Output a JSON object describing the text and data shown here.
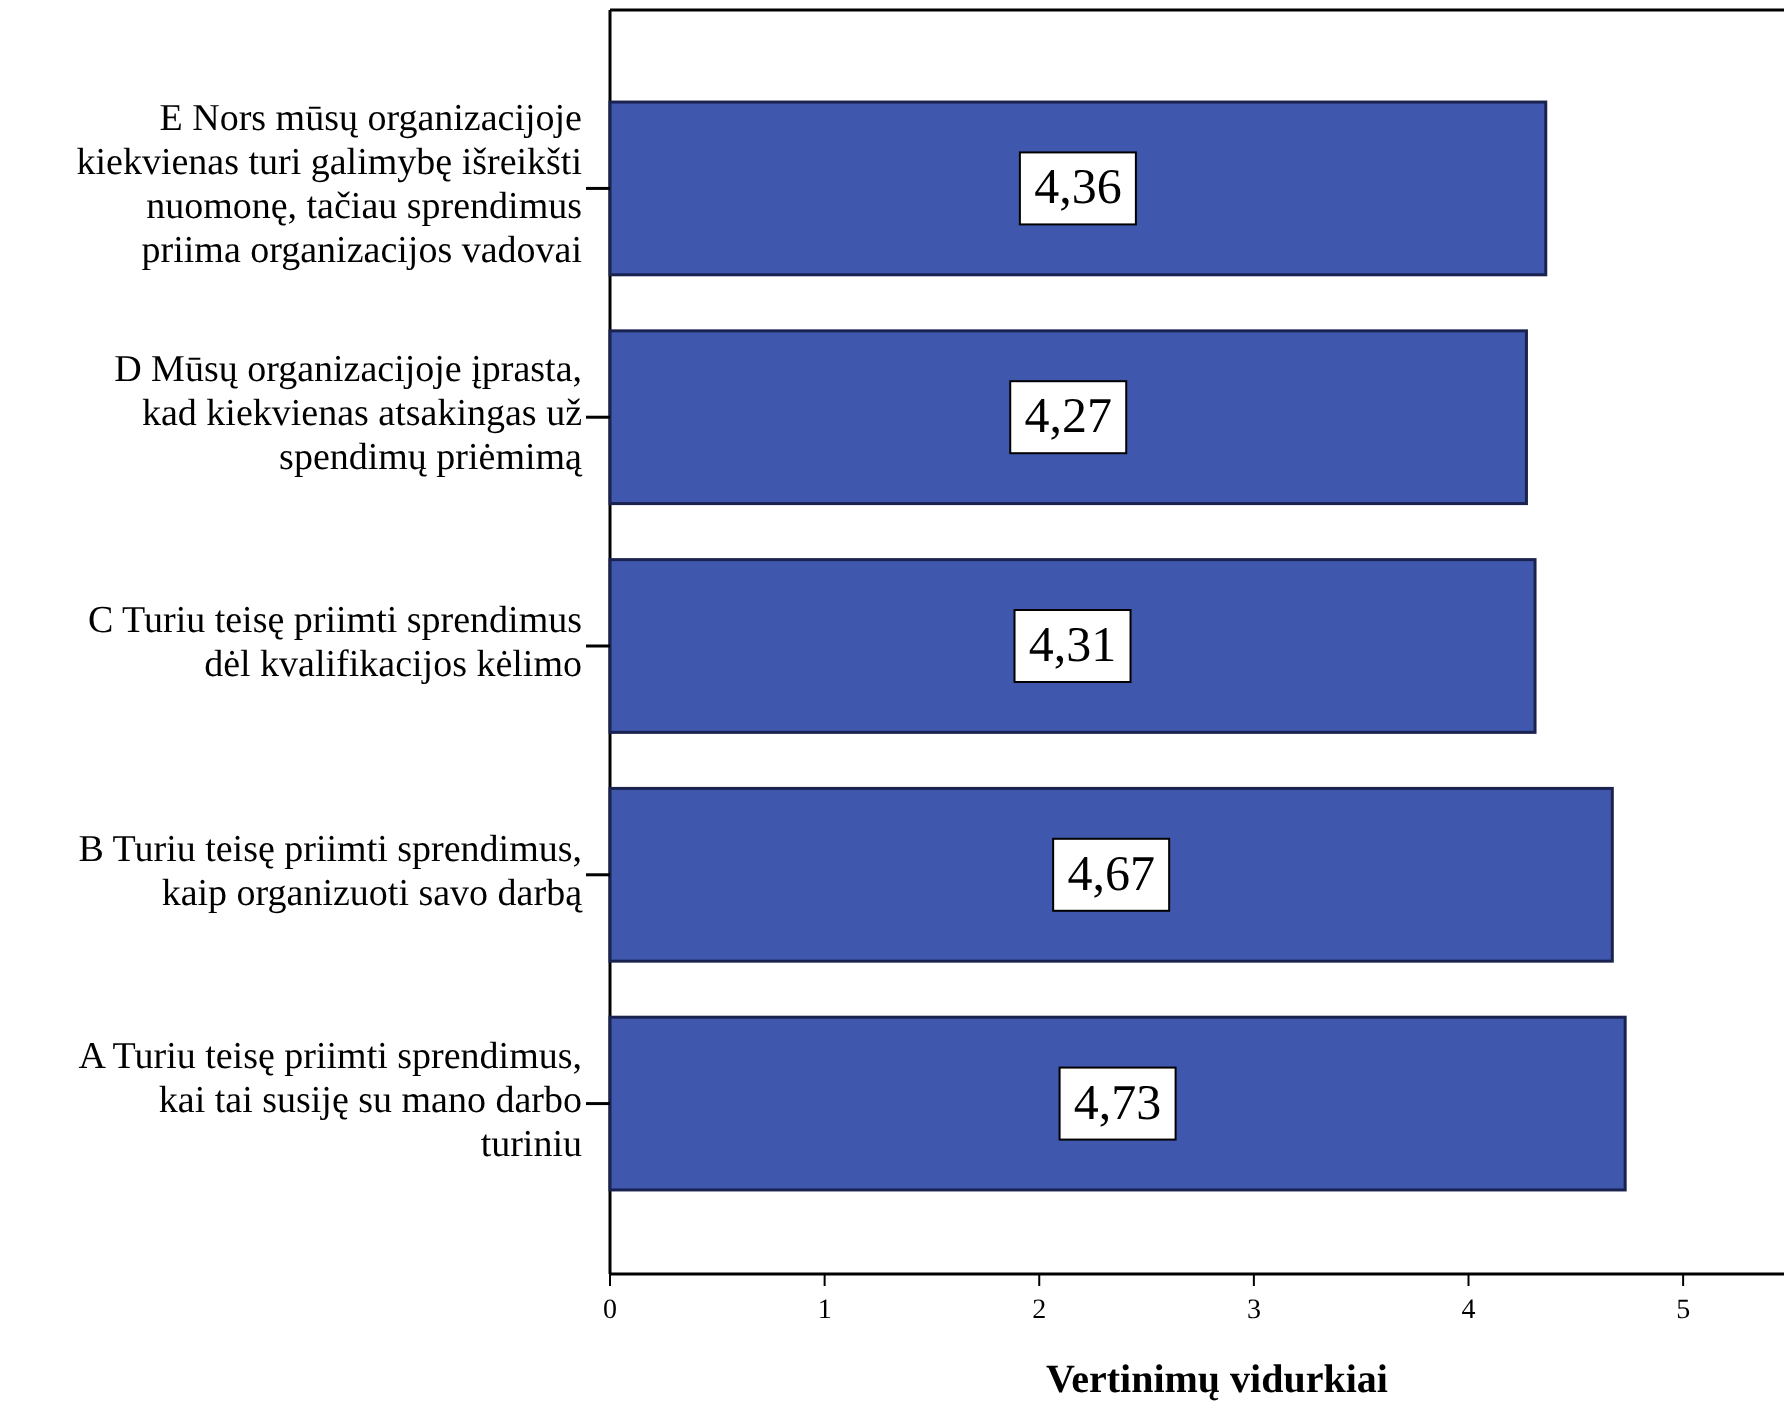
{
  "chart_data": {
    "type": "bar",
    "orientation": "horizontal",
    "xlabel": "Vertinimų vidurkiai",
    "categories": [
      "E Nors mūsų organizacijoje\nkiekvienas turi galimybę išreikšti\nnuomonę, tačiau sprendimus\npriima organizacijos vadovai",
      "D Mūsų organizacijoje įprasta,\nkad kiekvienas atsakingas už\nspendimų priėmimą",
      "C Turiu teisę priimti sprendimus\ndėl kvalifikacijos kėlimo",
      "B Turiu teisę priimti sprendimus,\nkaip organizuoti savo darbą",
      "A Turiu teisę priimti sprendimus,\nkai tai susiję su mano darbo\nturiniu"
    ],
    "values": [
      4.36,
      4.27,
      4.31,
      4.67,
      4.73
    ],
    "value_labels": [
      "4,36",
      "4,27",
      "4,31",
      "4,67",
      "4,73"
    ],
    "color": "#3f58ad",
    "xlim": [
      0,
      5.47
    ],
    "xticks": [
      0,
      1,
      2,
      3,
      4,
      5
    ]
  }
}
